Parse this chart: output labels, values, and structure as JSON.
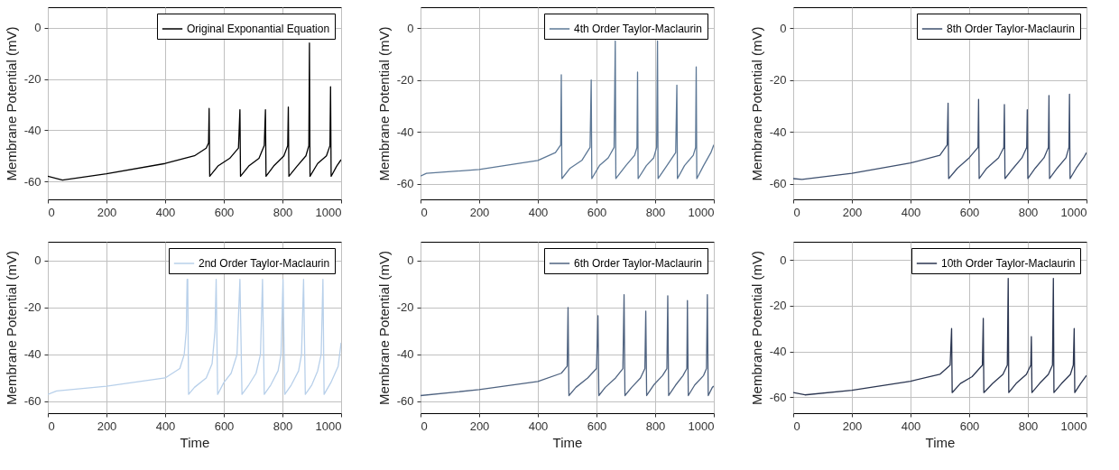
{
  "chart_data": [
    {
      "type": "line",
      "ylabel": "Membrane Potential (mV)",
      "xlim": [
        0,
        1000
      ],
      "xticks": [
        0,
        200,
        400,
        600,
        800,
        1000
      ],
      "ylim": [
        -67,
        8
      ],
      "yticks": [
        -60,
        -40,
        -20,
        0
      ],
      "grid": true,
      "legend": "top right",
      "series": [
        {
          "name": "Original Exponantial Equation",
          "color": "#000000",
          "x": [
            0,
            50,
            200,
            400,
            500,
            540,
            548,
            550,
            552,
            580,
            620,
            650,
            655,
            657,
            685,
            720,
            738,
            742,
            744,
            770,
            805,
            818,
            820,
            822,
            850,
            880,
            890,
            892,
            894,
            920,
            950,
            962,
            964,
            966,
            985,
            1000
          ],
          "values": [
            -58,
            -59.5,
            -57,
            -53,
            -50,
            -47,
            -45,
            -31.5,
            -58,
            -54,
            -51,
            -47,
            -32,
            -58,
            -54,
            -51,
            -46,
            -32,
            -58,
            -54,
            -50,
            -46,
            -31,
            -58,
            -54,
            -50,
            -46,
            -6,
            -58,
            -53,
            -50,
            -46,
            -23,
            -58,
            -54,
            -51.5
          ]
        }
      ]
    },
    {
      "type": "line",
      "ylabel": "Membrane Potential (mV)",
      "xlim": [
        0,
        1000
      ],
      "xticks": [
        0,
        200,
        400,
        600,
        800,
        1000
      ],
      "ylim": [
        -66,
        8
      ],
      "yticks": [
        -60,
        -40,
        -20,
        0
      ],
      "grid": true,
      "legend": "top right",
      "series": [
        {
          "name": "4th Order Taylor-Maclaurin",
          "color": "#5d7896",
          "x": [
            0,
            20,
            200,
            400,
            460,
            478,
            480,
            482,
            510,
            550,
            578,
            582,
            584,
            610,
            640,
            660,
            664,
            666,
            700,
            730,
            738,
            740,
            742,
            770,
            795,
            805,
            808,
            810,
            840,
            870,
            874,
            876,
            900,
            930,
            938,
            940,
            942,
            965,
            990,
            1000
          ],
          "values": [
            -57,
            -56,
            -54.5,
            -51,
            -48,
            -45,
            -18,
            -58,
            -54,
            -51,
            -46,
            -20,
            -58,
            -53,
            -50,
            -46,
            -5,
            -58,
            -53,
            -49,
            -46,
            -17,
            -58,
            -53,
            -50,
            -46,
            -5,
            -58,
            -53,
            -48,
            -22,
            -58,
            -53,
            -49,
            -46,
            -15,
            -58,
            -53,
            -48,
            -45
          ]
        }
      ]
    },
    {
      "type": "line",
      "ylabel": "Membrane Potential (mV)",
      "xlim": [
        0,
        1000
      ],
      "xticks": [
        0,
        200,
        400,
        600,
        800,
        1000
      ],
      "ylim": [
        -66,
        8
      ],
      "yticks": [
        -60,
        -40,
        -20,
        0
      ],
      "grid": true,
      "legend": "top right",
      "series": [
        {
          "name": "8th Order Taylor-Maclaurin",
          "color": "#3d4f6e",
          "x": [
            0,
            30,
            200,
            400,
            500,
            525,
            528,
            530,
            560,
            600,
            630,
            632,
            634,
            660,
            700,
            718,
            720,
            722,
            750,
            780,
            796,
            798,
            800,
            825,
            855,
            870,
            872,
            874,
            900,
            930,
            940,
            942,
            944,
            965,
            990,
            1000
          ],
          "values": [
            -58,
            -58.3,
            -56,
            -52,
            -49,
            -45,
            -29,
            -58,
            -54,
            -50,
            -46,
            -27.5,
            -58,
            -54,
            -50,
            -46,
            -29.5,
            -58,
            -54,
            -50,
            -46,
            -31.5,
            -58,
            -54,
            -50,
            -46,
            -26,
            -58,
            -54,
            -50,
            -46,
            -25.5,
            -58,
            -54,
            -50,
            -48
          ]
        }
      ]
    },
    {
      "type": "line",
      "xlabel": "Time",
      "ylabel": "Membrane Potential (mV)",
      "xlim": [
        0,
        1000
      ],
      "xticks": [
        0,
        200,
        400,
        600,
        800,
        1000
      ],
      "ylim": [
        -65,
        8
      ],
      "yticks": [
        -60,
        -40,
        -20,
        0
      ],
      "grid": true,
      "legend": "top right",
      "series": [
        {
          "name": "2nd Order Taylor-Maclaurin",
          "color": "#b8d0ea",
          "x": [
            0,
            30,
            200,
            400,
            450,
            465,
            472,
            475,
            477,
            480,
            500,
            540,
            560,
            570,
            574,
            579,
            600,
            625,
            645,
            655,
            662,
            685,
            710,
            725,
            732,
            738,
            760,
            785,
            795,
            802,
            808,
            830,
            855,
            865,
            872,
            878,
            900,
            920,
            932,
            938,
            942,
            965,
            990,
            1000
          ],
          "values": [
            -57,
            -55.5,
            -53.5,
            -50,
            -46,
            -40,
            -30,
            -8,
            -8,
            -57,
            -54,
            -50,
            -44,
            -30,
            -8,
            -57,
            -52,
            -48,
            -40,
            -8,
            -57,
            -53,
            -48,
            -40,
            -8,
            -57,
            -53,
            -47,
            -40,
            -8,
            -57,
            -53,
            -47,
            -40,
            -8,
            -57,
            -53,
            -47,
            -40,
            -8,
            -57,
            -52,
            -45,
            -35
          ]
        }
      ]
    },
    {
      "type": "line",
      "xlabel": "Time",
      "ylabel": "Membrane Potential (mV)",
      "xlim": [
        0,
        1000
      ],
      "xticks": [
        0,
        200,
        400,
        600,
        800,
        1000
      ],
      "ylim": [
        -65,
        8
      ],
      "yticks": [
        -60,
        -40,
        -20,
        0
      ],
      "grid": true,
      "legend": "top right",
      "series": [
        {
          "name": "6th Order Taylor-Maclaurin",
          "color": "#4f6380",
          "x": [
            0,
            200,
            400,
            480,
            500,
            503,
            506,
            530,
            570,
            600,
            605,
            608,
            630,
            665,
            690,
            694,
            697,
            720,
            750,
            765,
            768,
            771,
            795,
            825,
            840,
            843,
            846,
            870,
            895,
            908,
            910,
            913,
            935,
            965,
            975,
            978,
            981,
            995,
            1000
          ],
          "values": [
            -57.5,
            -55,
            -51.5,
            -48,
            -45,
            -20,
            -57.5,
            -54,
            -50,
            -46,
            -23.5,
            -57.5,
            -54,
            -50,
            -46,
            -14.5,
            -57.5,
            -54,
            -50,
            -46,
            -21.5,
            -57.5,
            -53,
            -49,
            -46,
            -15,
            -57.5,
            -53,
            -49,
            -46,
            -17,
            -57.5,
            -53,
            -49,
            -46,
            -14.5,
            -57.5,
            -54,
            -53.5
          ]
        }
      ]
    },
    {
      "type": "line",
      "xlabel": "Time",
      "ylabel": "Membrane Potential (mV)",
      "xlim": [
        0,
        1000
      ],
      "xticks": [
        0,
        200,
        400,
        600,
        800,
        1000
      ],
      "ylim": [
        -67,
        8
      ],
      "yticks": [
        -60,
        -40,
        -20,
        0
      ],
      "grid": true,
      "legend": "top right",
      "series": [
        {
          "name": "10th Order Taylor-Maclaurin",
          "color": "#2a3550",
          "x": [
            0,
            40,
            200,
            400,
            500,
            535,
            540,
            542,
            570,
            610,
            645,
            648,
            650,
            680,
            715,
            730,
            733,
            735,
            760,
            795,
            810,
            812,
            814,
            840,
            870,
            884,
            887,
            889,
            915,
            945,
            955,
            958,
            960,
            980,
            1000
          ],
          "values": [
            -58,
            -59,
            -57,
            -53,
            -50,
            -46,
            -30,
            -58,
            -54,
            -51,
            -46,
            -25.5,
            -58,
            -54,
            -50,
            -46,
            -8,
            -58,
            -54,
            -50,
            -46,
            -33.5,
            -58,
            -54,
            -50,
            -46,
            -8,
            -58,
            -54,
            -50,
            -46,
            -30,
            -58,
            -54,
            -50.5
          ]
        }
      ]
    }
  ]
}
